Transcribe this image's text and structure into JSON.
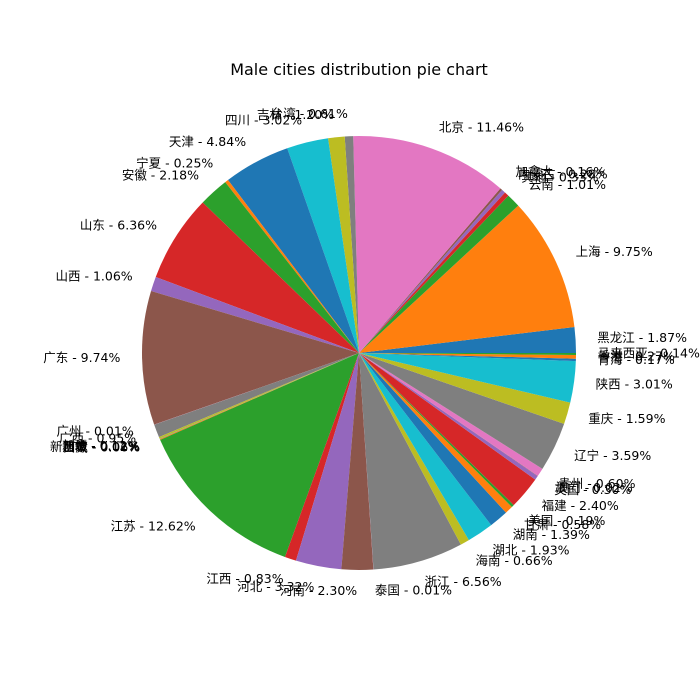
{
  "chart_data": {
    "type": "pie",
    "title": "Male cities distribution pie chart",
    "start_angle_deg": 0,
    "direction": "counterclockwise",
    "colors": [
      "#1f77b4",
      "#ff7f0e",
      "#2ca02c",
      "#d62728",
      "#9467bd",
      "#8c564b",
      "#e377c2",
      "#7f7f7f",
      "#bcbd22",
      "#17becf"
    ],
    "slices": [
      {
        "label": "黑龙江",
        "value": 1.87
      },
      {
        "label": "上海",
        "value": 9.75
      },
      {
        "label": "云南",
        "value": 1.01
      },
      {
        "label": "其他",
        "value": 0.33
      },
      {
        "label": "内蒙古",
        "value": 0.28
      },
      {
        "label": "加拿大",
        "value": 0.16
      },
      {
        "label": "北京",
        "value": 11.46
      },
      {
        "label": "台湾",
        "value": 0.61
      },
      {
        "label": "吉林",
        "value": 1.2
      },
      {
        "label": "四川",
        "value": 3.02
      },
      {
        "label": "天津",
        "value": 4.84
      },
      {
        "label": "宁夏",
        "value": 0.25
      },
      {
        "label": "安徽",
        "value": 2.18
      },
      {
        "label": "山东",
        "value": 6.36
      },
      {
        "label": "山西",
        "value": 1.06
      },
      {
        "label": "广东",
        "value": 9.74
      },
      {
        "label": "广州",
        "value": 0.01
      },
      {
        "label": "广西",
        "value": 0.95
      },
      {
        "label": "新疆",
        "value": 0.12
      },
      {
        "label": "新加坡",
        "value": 0.02
      },
      {
        "label": "日本",
        "value": 0.01
      },
      {
        "label": "西藏",
        "value": 0.06
      },
      {
        "label": "江苏",
        "value": 12.62
      },
      {
        "label": "江西",
        "value": 0.83
      },
      {
        "label": "河北",
        "value": 3.32
      },
      {
        "label": "河南",
        "value": 2.3
      },
      {
        "label": "泰国",
        "value": 0.01
      },
      {
        "label": "浙江",
        "value": 6.56
      },
      {
        "label": "海南",
        "value": 0.66
      },
      {
        "label": "湖北",
        "value": 1.93
      },
      {
        "label": "湖南",
        "value": 1.39
      },
      {
        "label": "甘肃",
        "value": 0.58
      },
      {
        "label": "美国",
        "value": 0.19
      },
      {
        "label": "福建",
        "value": 2.4
      },
      {
        "label": "英国",
        "value": 0.3
      },
      {
        "label": "澳门",
        "value": 0.02
      },
      {
        "label": "贵州",
        "value": 0.6
      },
      {
        "label": "辽宁",
        "value": 3.59
      },
      {
        "label": "重庆",
        "value": 1.59
      },
      {
        "label": "陕西",
        "value": 3.01
      },
      {
        "label": "青海",
        "value": 0.17
      },
      {
        "label": "香港",
        "value": 0.27
      },
      {
        "label": "马来西亚",
        "value": 0.14
      }
    ]
  }
}
